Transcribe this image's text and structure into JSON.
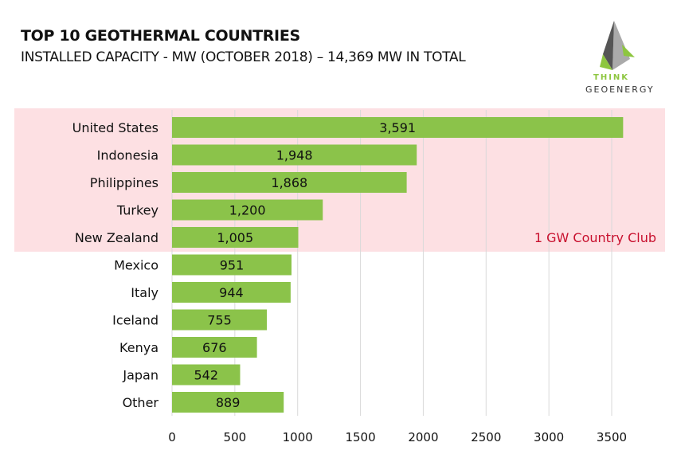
{
  "chart_data": {
    "type": "bar",
    "orientation": "horizontal",
    "title": "TOP 10 GEOTHERMAL COUNTRIES",
    "subtitle": "INSTALLED CAPACITY - MW (OCTOBER 2018) – 14,369 MW IN TOTAL",
    "categories": [
      "United States",
      "Indonesia",
      "Philippines",
      "Turkey",
      "New Zealand",
      "Mexico",
      "Italy",
      "Iceland",
      "Kenya",
      "Japan",
      "Other"
    ],
    "values": [
      3591,
      1948,
      1868,
      1200,
      1005,
      951,
      944,
      755,
      676,
      542,
      889
    ],
    "value_labels": [
      "3,591",
      "1,948",
      "1,868",
      "1,200",
      "1,005",
      "951",
      "944",
      "755",
      "676",
      "542",
      "889"
    ],
    "xlim": [
      0,
      3500
    ],
    "xticks": [
      "0",
      "500",
      "1000",
      "1500",
      "2000",
      "2500",
      "3000",
      "3500"
    ],
    "xtick_values": [
      0,
      500,
      1000,
      1500,
      2000,
      2500,
      3000,
      3500
    ],
    "grid": true,
    "highlight": {
      "label": "1 GW Country Club",
      "rows": 5
    },
    "colors": {
      "bar": "#8bc34a",
      "highlight_bg": "#fde0e3",
      "highlight_text": "#c8102e",
      "grid": "#d9d9d9"
    }
  },
  "logo": {
    "line1": "THINK",
    "line2": "GEOENERGY"
  }
}
